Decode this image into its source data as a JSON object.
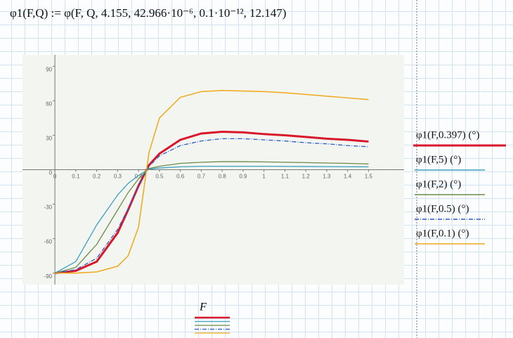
{
  "header": {
    "formula": "φ1(F,Q) := φ(F, Q, 4.155, 42.966·10⁻⁶, 0.1·10⁻¹², 12.147)"
  },
  "chart_data": {
    "type": "line",
    "x_label": "F",
    "x": [
      0,
      0.1,
      0.2,
      0.3,
      0.35,
      0.4,
      0.45,
      0.5,
      0.6,
      0.7,
      0.8,
      0.9,
      1.0,
      1.1,
      1.2,
      1.3,
      1.4,
      1.5
    ],
    "series": [
      {
        "name": "φ1(F,0.397) (°)",
        "color": "#d8182a",
        "width": 3,
        "dash": "solid",
        "values": [
          -90,
          -88,
          -80,
          -55,
          -35,
          -14,
          4,
          14,
          26,
          31.5,
          33,
          32.5,
          31,
          30,
          28.5,
          27,
          26,
          24.5
        ]
      },
      {
        "name": "φ1(F,5) (°)",
        "color": "#3aa0bf",
        "width": 1.3,
        "dash": "solid",
        "values": [
          -90,
          -80,
          -48,
          -22,
          -12,
          -5,
          0.5,
          1.5,
          2.5,
          3,
          3,
          3,
          3,
          2.9,
          2.8,
          2.7,
          2.6,
          2.5
        ]
      },
      {
        "name": "φ1(F,2) (°)",
        "color": "#6e8b4a",
        "width": 1.3,
        "dash": "solid",
        "values": [
          -90,
          -85,
          -65,
          -35,
          -20,
          -8,
          1,
          3,
          5.5,
          6.5,
          7,
          7,
          6.8,
          6.5,
          6.2,
          5.8,
          5.5,
          5
        ]
      },
      {
        "name": "φ1(F,0.5) (°)",
        "color": "#2a5bc8",
        "width": 1.3,
        "dash": "dashdot",
        "values": [
          -90,
          -87,
          -77,
          -52,
          -34,
          -14,
          3,
          12,
          21,
          25,
          27,
          27,
          26,
          25,
          23.5,
          22.5,
          21,
          20
        ]
      },
      {
        "name": "φ1(F,0.1) (°)",
        "color": "#f0a818",
        "width": 1.5,
        "dash": "solid",
        "values": [
          -90,
          -90,
          -89,
          -84,
          -75,
          -50,
          15,
          45,
          63,
          68,
          69,
          68.5,
          68,
          67,
          65.5,
          64,
          62.5,
          61
        ]
      }
    ],
    "xlim": [
      -0.155,
      1.67
    ],
    "ylim": [
      -100,
      100
    ],
    "xticks": [
      0,
      0.1,
      0.2,
      0.3,
      0.4,
      0.5,
      0.6,
      0.7,
      0.8,
      0.9,
      1,
      1.1,
      1.2,
      1.3,
      1.4,
      1.5
    ],
    "yticks": [
      -90,
      -60,
      -30,
      0,
      30,
      60,
      90
    ]
  }
}
